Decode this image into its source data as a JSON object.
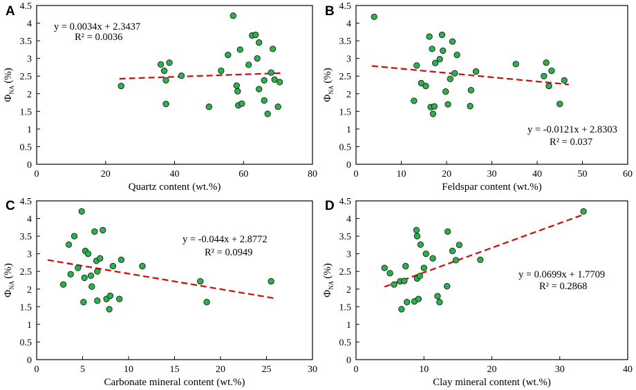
{
  "colors": {
    "point_fill": "#2bb24c",
    "point_stroke": "#1a1a1a",
    "trend_line": "#cc1111",
    "axis": "#000000"
  },
  "chart_data": [
    {
      "type": "scatter",
      "panel": "A",
      "title": "",
      "xlabel": "Quartz content (wt.%)",
      "ylabel_main": "Φ",
      "ylabel_sub": "NA",
      "ylabel_unit": "(%)",
      "xlim": [
        0,
        80
      ],
      "ylim": [
        0,
        4.5
      ],
      "xticks": [
        0,
        20,
        40,
        60,
        80
      ],
      "yticks": [
        0,
        0.5,
        1,
        1.5,
        2,
        2.5,
        3,
        3.5,
        4,
        4.5
      ],
      "equation": "y = 0.0034x + 2.3437",
      "r2": "R² = 0.0036",
      "equation_position": "top-left",
      "trend": {
        "slope": 0.0034,
        "intercept": 2.3437,
        "x_range": [
          24,
          71
        ]
      },
      "points": [
        [
          24.5,
          2.22
        ],
        [
          36,
          2.83
        ],
        [
          37,
          2.65
        ],
        [
          37.5,
          2.38
        ],
        [
          38.5,
          2.88
        ],
        [
          37.5,
          1.71
        ],
        [
          42,
          2.51
        ],
        [
          50,
          1.63
        ],
        [
          53.5,
          2.65
        ],
        [
          55.5,
          3.1
        ],
        [
          57,
          4.21
        ],
        [
          58,
          2.23
        ],
        [
          58.3,
          2.07
        ],
        [
          59,
          3.25
        ],
        [
          58.5,
          1.67
        ],
        [
          59.5,
          1.72
        ],
        [
          61.5,
          2.82
        ],
        [
          62.5,
          3.65
        ],
        [
          63.5,
          3.67
        ],
        [
          64,
          3.0
        ],
        [
          64.5,
          3.45
        ],
        [
          64.5,
          2.13
        ],
        [
          66,
          2.38
        ],
        [
          66,
          1.81
        ],
        [
          67,
          1.43
        ],
        [
          68,
          2.6
        ],
        [
          68.5,
          3.27
        ],
        [
          69,
          2.4
        ],
        [
          70,
          1.63
        ],
        [
          70.5,
          2.33
        ]
      ]
    },
    {
      "type": "scatter",
      "panel": "B",
      "title": "",
      "xlabel": "Feldspar content (wt.%)",
      "ylabel_main": "Φ",
      "ylabel_sub": "NA",
      "ylabel_unit": "(%)",
      "xlim": [
        0,
        60
      ],
      "ylim": [
        0,
        4.5
      ],
      "xticks": [
        0,
        10,
        20,
        30,
        40,
        50,
        60
      ],
      "yticks": [
        0,
        0.5,
        1,
        1.5,
        2,
        2.5,
        3,
        3.5,
        4,
        4.5
      ],
      "equation": "y = -0.0121x + 2.8303",
      "r2": "R² = 0.037",
      "equation_position": "right-middle",
      "trend": {
        "slope": -0.0121,
        "intercept": 2.8303,
        "x_range": [
          3.5,
          47
        ]
      },
      "points": [
        [
          4,
          4.18
        ],
        [
          12.8,
          1.8
        ],
        [
          13.4,
          2.8
        ],
        [
          14.4,
          2.3
        ],
        [
          15.4,
          2.22
        ],
        [
          16.2,
          3.62
        ],
        [
          16.5,
          1.62
        ],
        [
          16.8,
          3.27
        ],
        [
          17,
          1.43
        ],
        [
          17.3,
          1.64
        ],
        [
          17.5,
          2.87
        ],
        [
          18.5,
          2.98
        ],
        [
          19,
          3.67
        ],
        [
          19.2,
          3.22
        ],
        [
          19.8,
          2.06
        ],
        [
          20.3,
          1.7
        ],
        [
          20.8,
          2.42
        ],
        [
          21.3,
          3.48
        ],
        [
          21.8,
          2.58
        ],
        [
          22.3,
          3.1
        ],
        [
          25.2,
          1.65
        ],
        [
          25.4,
          2.1
        ],
        [
          26.5,
          2.63
        ],
        [
          35.3,
          2.84
        ],
        [
          41.5,
          2.5
        ],
        [
          42,
          2.88
        ],
        [
          42.6,
          2.22
        ],
        [
          43.2,
          2.65
        ],
        [
          45,
          1.71
        ],
        [
          46,
          2.38
        ]
      ]
    },
    {
      "type": "scatter",
      "panel": "C",
      "title": "",
      "xlabel": "Carbonate mineral content (wt.%)",
      "ylabel_main": "Φ",
      "ylabel_sub": "NA",
      "ylabel_unit": "(%)",
      "xlim": [
        0,
        30
      ],
      "ylim": [
        0,
        4.5
      ],
      "xticks": [
        0,
        5,
        10,
        15,
        20,
        25,
        30
      ],
      "yticks": [
        0,
        0.5,
        1,
        1.5,
        2,
        2.5,
        3,
        3.5,
        4,
        4.5
      ],
      "equation": "y = -0.044x + 2.8772",
      "r2": "R² = 0.0949",
      "equation_position": "top-right",
      "trend": {
        "slope": -0.044,
        "intercept": 2.8772,
        "x_range": [
          1.2,
          25.8
        ]
      },
      "points": [
        [
          2.9,
          2.13
        ],
        [
          3.5,
          3.26
        ],
        [
          3.7,
          2.42
        ],
        [
          4.1,
          3.5
        ],
        [
          4.5,
          2.6
        ],
        [
          4.9,
          4.2
        ],
        [
          5.1,
          1.63
        ],
        [
          5.2,
          2.32
        ],
        [
          5.3,
          3.08
        ],
        [
          5.6,
          3.0
        ],
        [
          5.9,
          2.38
        ],
        [
          6.0,
          2.07
        ],
        [
          6.3,
          3.63
        ],
        [
          6.5,
          2.8
        ],
        [
          6.6,
          2.5
        ],
        [
          6.6,
          1.67
        ],
        [
          6.9,
          2.87
        ],
        [
          7.2,
          3.67
        ],
        [
          7.6,
          1.72
        ],
        [
          7.9,
          1.43
        ],
        [
          8.0,
          1.81
        ],
        [
          8.3,
          2.65
        ],
        [
          9.0,
          1.72
        ],
        [
          9.2,
          2.83
        ],
        [
          11.5,
          2.65
        ],
        [
          17.8,
          2.22
        ],
        [
          18.5,
          1.63
        ],
        [
          25.5,
          2.22
        ]
      ]
    },
    {
      "type": "scatter",
      "panel": "D",
      "title": "",
      "xlabel": "Clay mineral content (wt.%)",
      "ylabel_main": "Φ",
      "ylabel_sub": "NA",
      "ylabel_unit": "(%)",
      "xlim": [
        0,
        40
      ],
      "ylim": [
        0,
        4.5
      ],
      "xticks": [
        0,
        10,
        20,
        30,
        40
      ],
      "yticks": [
        0,
        0.5,
        1,
        1.5,
        2,
        2.5,
        3,
        3.5,
        4,
        4.5
      ],
      "equation": "y = 0.0699x + 1.7709",
      "r2": "R² = 0.2868",
      "equation_position": "right-middle",
      "trend": {
        "slope": 0.0699,
        "intercept": 1.7709,
        "x_range": [
          4.2,
          33.5
        ]
      },
      "points": [
        [
          4.2,
          2.6
        ],
        [
          5.0,
          2.45
        ],
        [
          5.6,
          2.13
        ],
        [
          6.5,
          2.22
        ],
        [
          6.7,
          1.43
        ],
        [
          7.1,
          2.23
        ],
        [
          7.3,
          2.65
        ],
        [
          7.5,
          1.63
        ],
        [
          8.6,
          1.65
        ],
        [
          8.9,
          3.67
        ],
        [
          9.0,
          3.5
        ],
        [
          9.0,
          2.3
        ],
        [
          9.2,
          1.72
        ],
        [
          9.4,
          2.37
        ],
        [
          9.5,
          3.26
        ],
        [
          10.0,
          2.6
        ],
        [
          10.3,
          3.0
        ],
        [
          11.3,
          2.87
        ],
        [
          12.0,
          1.8
        ],
        [
          12.3,
          1.63
        ],
        [
          13.4,
          2.08
        ],
        [
          13.5,
          3.63
        ],
        [
          14.2,
          3.08
        ],
        [
          14.7,
          2.82
        ],
        [
          15.2,
          3.25
        ],
        [
          18.3,
          2.83
        ],
        [
          33.5,
          4.2
        ]
      ]
    }
  ]
}
